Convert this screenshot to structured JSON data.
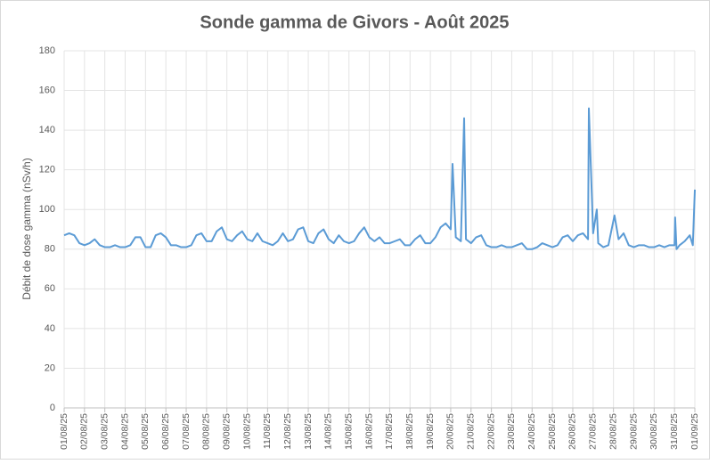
{
  "chart_data": {
    "type": "line",
    "title": "Sonde gamma de Givors - Août 2025",
    "y_label": "Débit de dose gamma (nSv/h)",
    "color": "#5b9bd5",
    "grid": true,
    "xlim": [
      0,
      31
    ],
    "ylim": [
      0,
      180
    ],
    "yticks": [
      0,
      20,
      40,
      60,
      80,
      100,
      120,
      140,
      160,
      180
    ],
    "xticks": [
      {
        "value": 0,
        "label": "01/08/25"
      },
      {
        "value": 1,
        "label": "02/08/25"
      },
      {
        "value": 2,
        "label": "03/08/25"
      },
      {
        "value": 3,
        "label": "04/08/25"
      },
      {
        "value": 4,
        "label": "05/08/25"
      },
      {
        "value": 5,
        "label": "06/08/25"
      },
      {
        "value": 6,
        "label": "07/08/25"
      },
      {
        "value": 7,
        "label": "08/08/25"
      },
      {
        "value": 8,
        "label": "09/08/25"
      },
      {
        "value": 9,
        "label": "10/08/25"
      },
      {
        "value": 10,
        "label": "11/08/25"
      },
      {
        "value": 11,
        "label": "12/08/25"
      },
      {
        "value": 12,
        "label": "13/08/25"
      },
      {
        "value": 13,
        "label": "14/08/25"
      },
      {
        "value": 14,
        "label": "15/08/25"
      },
      {
        "value": 15,
        "label": "16/08/25"
      },
      {
        "value": 16,
        "label": "17/08/25"
      },
      {
        "value": 17,
        "label": "18/08/25"
      },
      {
        "value": 18,
        "label": "19/08/25"
      },
      {
        "value": 19,
        "label": "20/08/25"
      },
      {
        "value": 20,
        "label": "21/08/25"
      },
      {
        "value": 21,
        "label": "22/08/25"
      },
      {
        "value": 22,
        "label": "23/08/25"
      },
      {
        "value": 23,
        "label": "24/08/25"
      },
      {
        "value": 24,
        "label": "25/08/25"
      },
      {
        "value": 25,
        "label": "26/08/25"
      },
      {
        "value": 26,
        "label": "27/08/25"
      },
      {
        "value": 27,
        "label": "28/08/25"
      },
      {
        "value": 28,
        "label": "29/08/25"
      },
      {
        "value": 29,
        "label": "30/08/25"
      },
      {
        "value": 30,
        "label": "31/08/25"
      },
      {
        "value": 31,
        "label": "01/09/25"
      }
    ],
    "x": [
      0,
      0.25,
      0.5,
      0.75,
      1,
      1.25,
      1.5,
      1.75,
      2,
      2.25,
      2.5,
      2.75,
      3,
      3.25,
      3.5,
      3.75,
      4,
      4.25,
      4.5,
      4.75,
      5,
      5.25,
      5.5,
      5.75,
      6,
      6.25,
      6.5,
      6.75,
      7,
      7.25,
      7.5,
      7.75,
      8,
      8.25,
      8.5,
      8.75,
      9,
      9.25,
      9.5,
      9.75,
      10,
      10.25,
      10.5,
      10.75,
      11,
      11.25,
      11.5,
      11.75,
      12,
      12.25,
      12.5,
      12.75,
      13,
      13.25,
      13.5,
      13.75,
      14,
      14.25,
      14.5,
      14.75,
      15,
      15.25,
      15.5,
      15.75,
      16,
      16.25,
      16.5,
      16.75,
      17,
      17.25,
      17.5,
      17.75,
      18,
      18.25,
      18.5,
      18.75,
      19,
      19.09,
      19.25,
      19.5,
      19.66,
      19.75,
      20,
      20.25,
      20.5,
      20.75,
      21,
      21.25,
      21.5,
      21.75,
      22,
      22.25,
      22.5,
      22.75,
      23,
      23.25,
      23.5,
      23.75,
      24,
      24.25,
      24.5,
      24.75,
      25,
      25.25,
      25.5,
      25.75,
      25.79,
      26,
      26.18,
      26.25,
      26.5,
      26.75,
      27.05,
      27.25,
      27.5,
      27.75,
      28,
      28.25,
      28.5,
      28.75,
      29,
      29.25,
      29.5,
      29.75,
      30,
      30.03,
      30.1,
      30.25,
      30.5,
      30.75,
      30.9,
      31
    ],
    "values": [
      87,
      88,
      87,
      83,
      82,
      83,
      85,
      82,
      81,
      81,
      82,
      81,
      81,
      82,
      86,
      86,
      81,
      81,
      87,
      88,
      86,
      82,
      82,
      81,
      81,
      82,
      87,
      88,
      84,
      84,
      89,
      91,
      85,
      84,
      87,
      89,
      85,
      84,
      88,
      84,
      83,
      82,
      84,
      88,
      84,
      85,
      90,
      91,
      84,
      83,
      88,
      90,
      85,
      83,
      87,
      84,
      83,
      84,
      88,
      91,
      86,
      84,
      86,
      83,
      83,
      84,
      85,
      82,
      82,
      85,
      87,
      83,
      83,
      86,
      91,
      93,
      90,
      123,
      86,
      84,
      146,
      85,
      83,
      86,
      87,
      82,
      81,
      81,
      82,
      81,
      81,
      82,
      83,
      80,
      80,
      81,
      83,
      82,
      81,
      82,
      86,
      87,
      84,
      87,
      88,
      85,
      151,
      88,
      100,
      83,
      81,
      82,
      97,
      85,
      88,
      82,
      81,
      82,
      82,
      81,
      81,
      82,
      81,
      82,
      82,
      96,
      80,
      82,
      84,
      87,
      82,
      110
    ]
  }
}
